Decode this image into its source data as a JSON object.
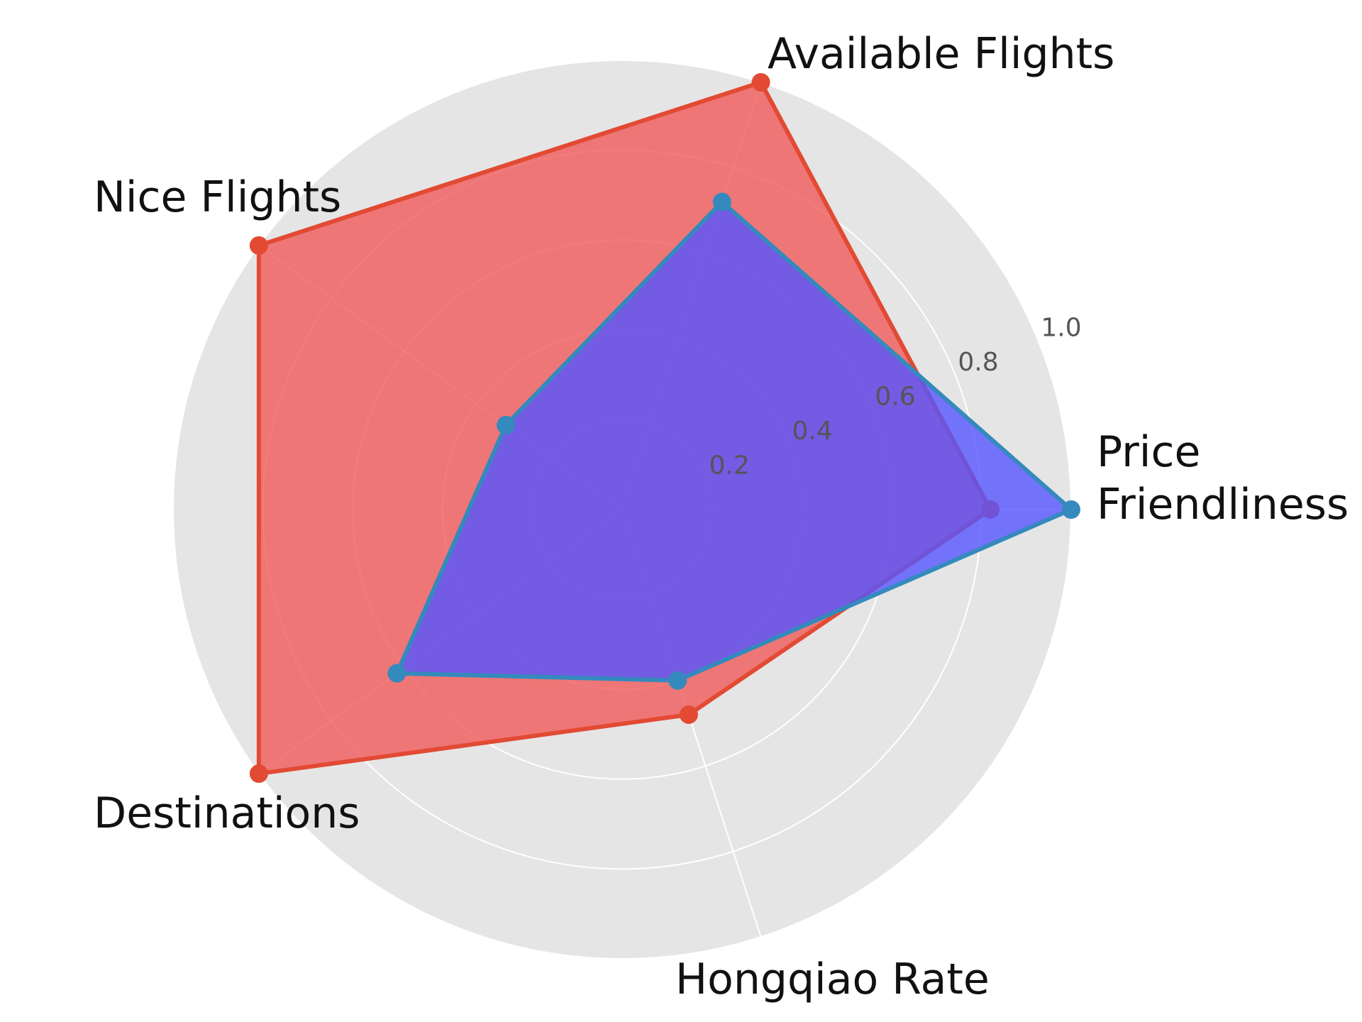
{
  "chart_data": {
    "type": "radar",
    "axes": [
      "Price\nFriendliness",
      "Available Flights",
      "Nice Flights",
      "Destinations",
      "Hongqiao Rate"
    ],
    "ticks": [
      "0.2",
      "0.4",
      "0.6",
      "0.8",
      "1.0"
    ],
    "tick_values": [
      0.2,
      0.4,
      0.6,
      0.8,
      1.0
    ],
    "rlim": [
      0,
      1.0
    ],
    "grid": true,
    "series": [
      {
        "values": [
          0.82,
          1.0,
          1.0,
          1.0,
          0.48
        ],
        "line_color": "#e24a33",
        "fill_color": "#f05a5a",
        "fill_opacity": 0.8
      },
      {
        "values": [
          1.0,
          0.72,
          0.32,
          0.62,
          0.4
        ],
        "line_color": "#348abd",
        "fill_color": "#5555ff",
        "fill_opacity": 0.8
      }
    ]
  },
  "colors": {
    "background_disc": "#e5e5e5",
    "grid": "#ffffff"
  }
}
